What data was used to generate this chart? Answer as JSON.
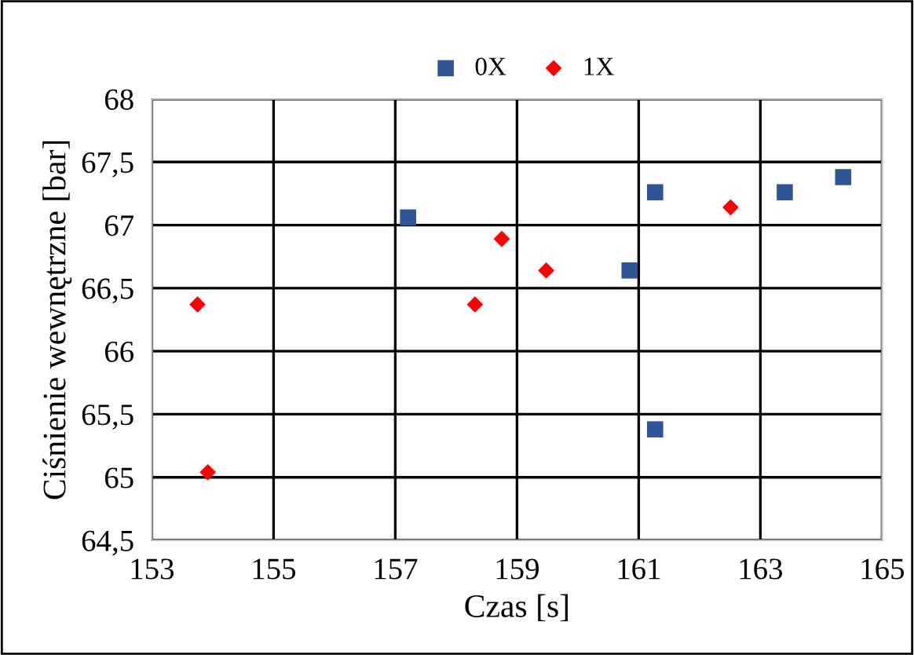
{
  "chart_data": {
    "type": "scatter",
    "xlabel": "Czas [s]",
    "ylabel": "Ciśnienie wewnętrzne [bar]",
    "series": [
      {
        "name": "0X",
        "color": "#2f5597",
        "marker": "square",
        "x": [
          157.21,
          161.27,
          160.85,
          161.27,
          163.4,
          164.36
        ],
        "values": [
          67.06,
          67.26,
          66.64,
          65.38,
          67.26,
          67.38
        ]
      },
      {
        "name": "1X",
        "color": "#ff0000",
        "marker": "diamond",
        "x": [
          153.75,
          153.92,
          158.31,
          158.75,
          159.48,
          162.51
        ],
        "values": [
          66.37,
          65.04,
          66.37,
          66.89,
          66.64,
          67.14
        ]
      }
    ],
    "xlim": [
      153,
      165
    ],
    "xticks": [
      153,
      155,
      157,
      159,
      161,
      163,
      165
    ],
    "ylim": [
      64.5,
      68
    ],
    "yticks": [
      {
        "value": 64.5,
        "label": "64,5"
      },
      65,
      {
        "value": 65.5,
        "label": "65,5"
      },
      66,
      {
        "value": 66.5,
        "label": "66,5"
      },
      67,
      {
        "value": 67.5,
        "label": "67,5"
      },
      68
    ],
    "grid": true,
    "legend": "top"
  }
}
